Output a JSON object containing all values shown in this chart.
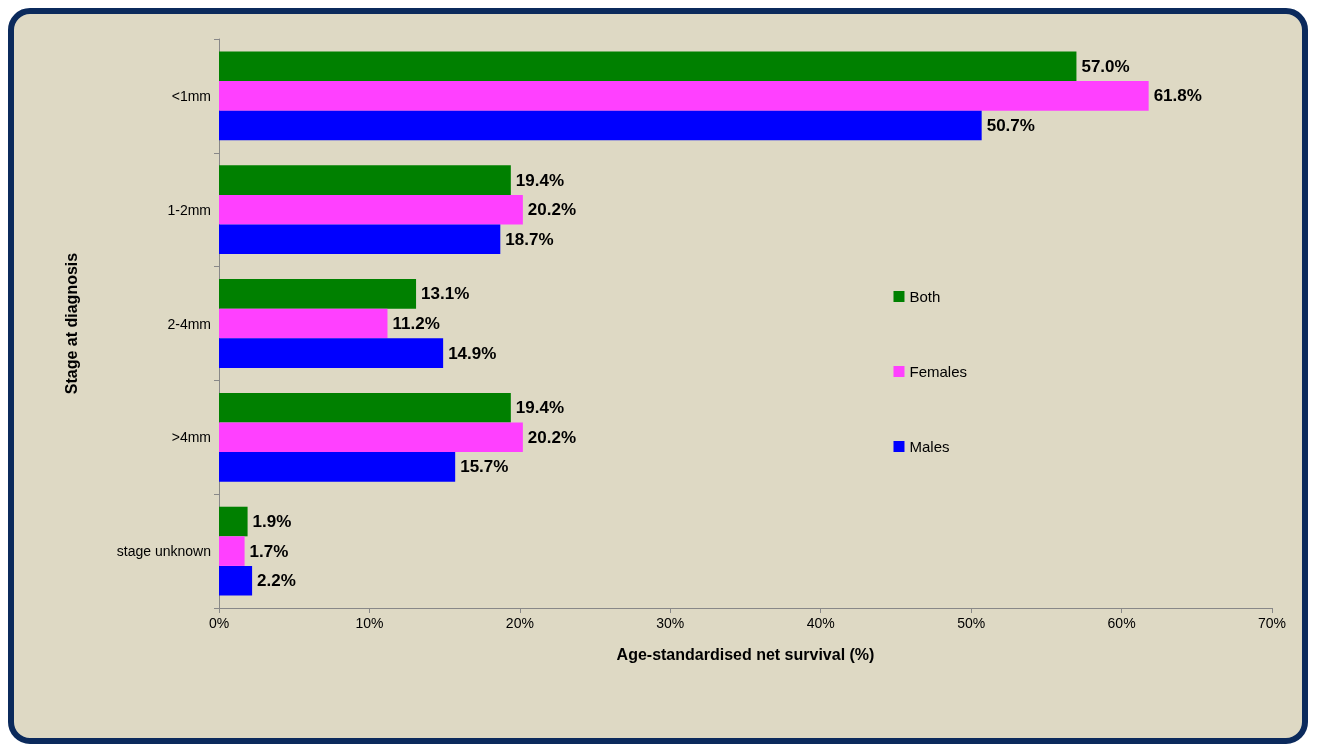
{
  "chart_data": {
    "type": "bar",
    "orientation": "horizontal",
    "xlabel": "Age-standardised net survival (%)",
    "ylabel": "Stage at diagnosis",
    "categories": [
      "<1mm",
      "1-2mm",
      "2-4mm",
      ">4mm",
      "stage unknown"
    ],
    "series": [
      {
        "name": "Both",
        "color": "#008000",
        "values": [
          57.0,
          19.4,
          13.1,
          19.4,
          1.9
        ],
        "value_labels": [
          "57.0%",
          "19.4%",
          "13.1%",
          "19.4%",
          "1.9%"
        ]
      },
      {
        "name": "Females",
        "color": "#ff40ff",
        "values": [
          61.8,
          20.2,
          11.2,
          20.2,
          1.7
        ],
        "value_labels": [
          "61.8%",
          "20.2%",
          "11.2%",
          "20.2%",
          "1.7%"
        ]
      },
      {
        "name": "Males",
        "color": "#0000ff",
        "values": [
          50.7,
          18.7,
          14.9,
          15.7,
          2.2
        ],
        "value_labels": [
          "50.7%",
          "18.7%",
          "14.9%",
          "15.7%",
          "2.2%"
        ]
      }
    ],
    "xlim": [
      0,
      70
    ],
    "xticks": [
      {
        "value": 0,
        "label": "0%"
      },
      {
        "value": 10,
        "label": "10%"
      },
      {
        "value": 20,
        "label": "20%"
      },
      {
        "value": 30,
        "label": "30%"
      },
      {
        "value": 40,
        "label": "40%"
      },
      {
        "value": 50,
        "label": "50%"
      },
      {
        "value": 60,
        "label": "60%"
      },
      {
        "value": 70,
        "label": "70%"
      }
    ],
    "grid": false,
    "legend": "right"
  }
}
